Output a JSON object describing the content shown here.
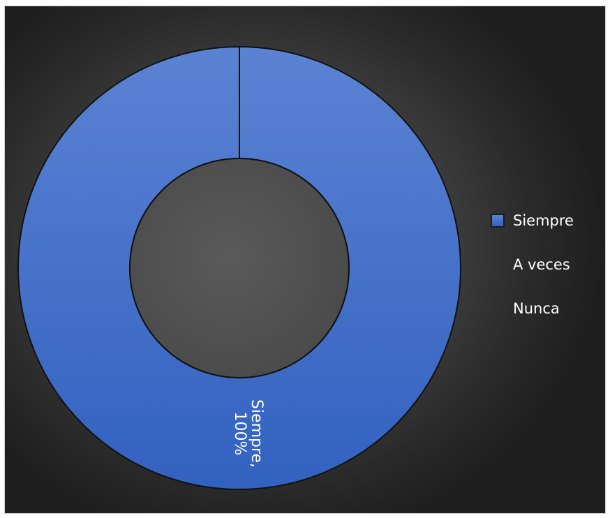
{
  "chart_data": {
    "type": "pie",
    "donut": true,
    "categories": [
      "Siempre",
      "A veces",
      "Nunca"
    ],
    "values": [
      100,
      0,
      0
    ],
    "unit": "%",
    "colors": [
      "#4472c4",
      "#ed7d31",
      "#a5a5a5"
    ],
    "data_labels": [
      {
        "category": "Siempre",
        "text": "Siempre,",
        "value_text": "100%"
      }
    ],
    "legend": {
      "position": "right",
      "entries": [
        "Siempre",
        "A veces",
        "Nunca"
      ]
    },
    "title": ""
  }
}
